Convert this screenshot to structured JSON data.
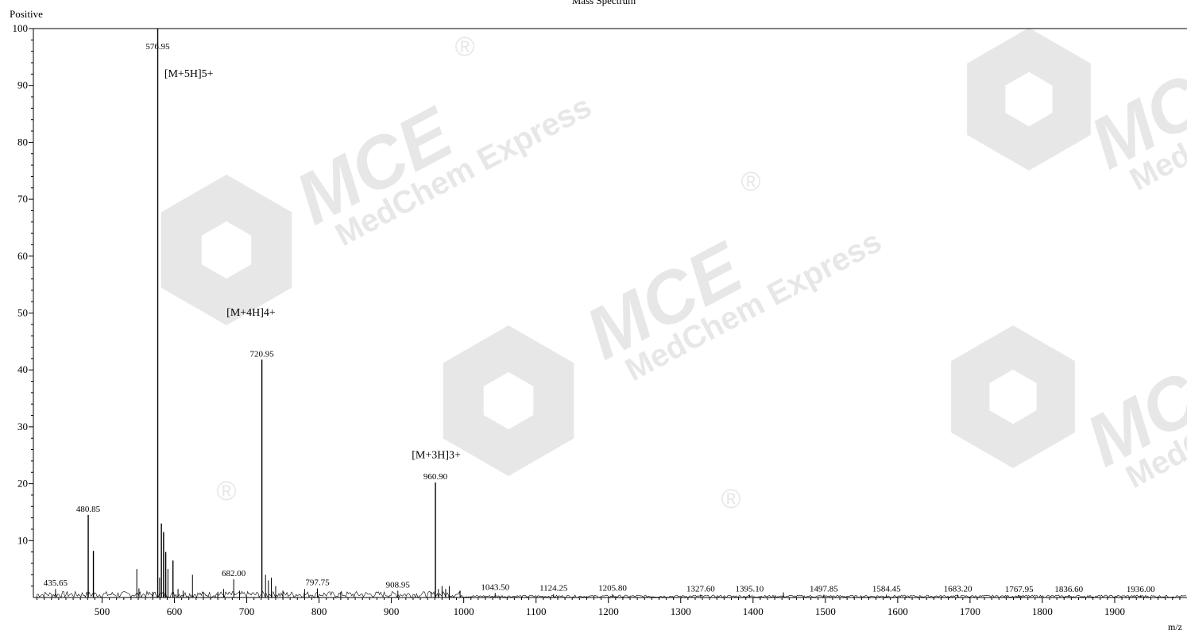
{
  "title": "Mass Spectrum",
  "mode_label": "Positive",
  "chart_data": {
    "type": "line",
    "title": "Mass Spectrum",
    "xlabel": "m/z",
    "ylabel": "",
    "xlim": [
      405,
      2000
    ],
    "ylim": [
      0,
      100
    ],
    "x_ticks": [
      500,
      600,
      700,
      800,
      900,
      1000,
      1100,
      1200,
      1300,
      1400,
      1500,
      1600,
      1700,
      1800,
      1900
    ],
    "y_ticks": [
      10,
      20,
      30,
      40,
      50,
      60,
      70,
      80,
      90,
      100
    ],
    "peaks": [
      {
        "mz": 435.65,
        "intensity": 1.5,
        "label": "435.65"
      },
      {
        "mz": 480.85,
        "intensity": 14.5,
        "label": "480.85"
      },
      {
        "mz": 488.0,
        "intensity": 8.2
      },
      {
        "mz": 548.0,
        "intensity": 5.0
      },
      {
        "mz": 551.0,
        "intensity": 1.6
      },
      {
        "mz": 570.0,
        "intensity": 1.0
      },
      {
        "mz": 576.95,
        "intensity": 100,
        "label": "576.95"
      },
      {
        "mz": 579.5,
        "intensity": 3.5
      },
      {
        "mz": 582.0,
        "intensity": 13.0
      },
      {
        "mz": 585.0,
        "intensity": 11.5
      },
      {
        "mz": 588.0,
        "intensity": 8.0
      },
      {
        "mz": 591.0,
        "intensity": 5.0
      },
      {
        "mz": 598.0,
        "intensity": 6.5
      },
      {
        "mz": 605.0,
        "intensity": 1.5
      },
      {
        "mz": 612.0,
        "intensity": 1.2
      },
      {
        "mz": 625.0,
        "intensity": 4.0
      },
      {
        "mz": 640.0,
        "intensity": 1.0
      },
      {
        "mz": 660.0,
        "intensity": 1.0
      },
      {
        "mz": 668.0,
        "intensity": 1.5
      },
      {
        "mz": 682.0,
        "intensity": 3.2,
        "label": "682.00"
      },
      {
        "mz": 690.0,
        "intensity": 1.2
      },
      {
        "mz": 720.95,
        "intensity": 41.8,
        "label": "720.95"
      },
      {
        "mz": 726.0,
        "intensity": 4.0
      },
      {
        "mz": 730.0,
        "intensity": 3.0
      },
      {
        "mz": 734.0,
        "intensity": 3.5
      },
      {
        "mz": 740.0,
        "intensity": 2.0
      },
      {
        "mz": 750.0,
        "intensity": 1.2
      },
      {
        "mz": 780.0,
        "intensity": 1.5
      },
      {
        "mz": 797.75,
        "intensity": 1.6,
        "label": "797.75"
      },
      {
        "mz": 830.0,
        "intensity": 1.0
      },
      {
        "mz": 908.95,
        "intensity": 1.2,
        "label": "908.95"
      },
      {
        "mz": 955.0,
        "intensity": 1.0
      },
      {
        "mz": 960.9,
        "intensity": 20.2,
        "label": "960.90"
      },
      {
        "mz": 965.0,
        "intensity": 1.5
      },
      {
        "mz": 970.0,
        "intensity": 2.0
      },
      {
        "mz": 975.0,
        "intensity": 1.5
      },
      {
        "mz": 980.0,
        "intensity": 2.0
      },
      {
        "mz": 995.0,
        "intensity": 1.2
      },
      {
        "mz": 1043.5,
        "intensity": 0.8,
        "label": "1043.50"
      },
      {
        "mz": 1124.25,
        "intensity": 0.6,
        "label": "1124.25"
      },
      {
        "mz": 1205.8,
        "intensity": 0.6,
        "label": "1205.80"
      },
      {
        "mz": 1327.6,
        "intensity": 0.5,
        "label": "1327.60"
      },
      {
        "mz": 1395.1,
        "intensity": 0.5,
        "label": "1395.10"
      },
      {
        "mz": 1442.0,
        "intensity": 0.9
      },
      {
        "mz": 1497.85,
        "intensity": 0.5,
        "label": "1497.85"
      },
      {
        "mz": 1584.45,
        "intensity": 0.5,
        "label": "1584.45"
      },
      {
        "mz": 1683.2,
        "intensity": 0.5,
        "label": "1683.20"
      },
      {
        "mz": 1767.95,
        "intensity": 0.4,
        "label": "1767.95"
      },
      {
        "mz": 1836.6,
        "intensity": 0.4,
        "label": "1836.60"
      },
      {
        "mz": 1936.0,
        "intensity": 0.4,
        "label": "1936.00"
      }
    ],
    "annotations": [
      {
        "text": "[M+5H]5+",
        "mz": 620,
        "intensity": 91.5
      },
      {
        "text": "[M+4H]4+",
        "mz": 706,
        "intensity": 49.5
      },
      {
        "text": "[M+3H]3+",
        "mz": 962,
        "intensity": 24.5
      }
    ],
    "grid": false,
    "legend": "none"
  },
  "watermark": {
    "brand": "MCE",
    "tagline": "MedChem Express",
    "registered": "®",
    "color": "#d4d4d4"
  }
}
